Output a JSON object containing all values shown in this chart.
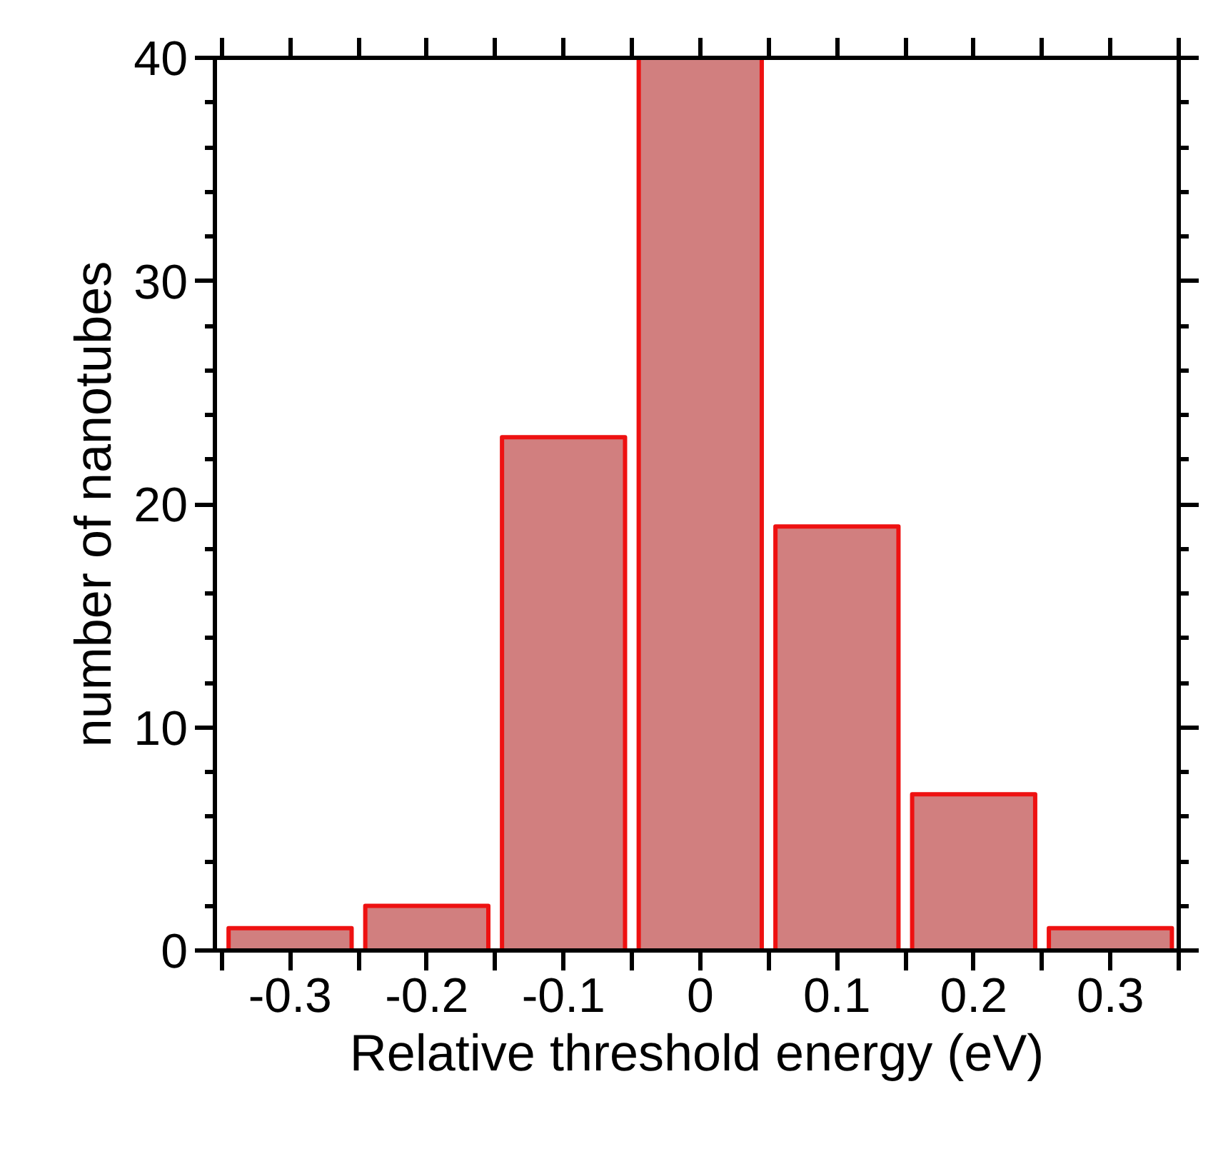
{
  "chart_data": {
    "type": "histogram",
    "xlabel": "Relative threshold energy (eV)",
    "ylabel": "number of nanotubes",
    "bins": [
      -0.35,
      -0.25,
      -0.15,
      -0.05,
      0.05,
      0.15,
      0.25,
      0.35
    ],
    "values": [
      1,
      2,
      23,
      40,
      19,
      7,
      1
    ],
    "color": "#d17f7f",
    "xlim": [
      -0.355,
      0.35
    ],
    "ylim": [
      0,
      40
    ],
    "xticks": [
      {
        "value": -0.35,
        "label": null
      },
      {
        "value": -0.3,
        "label": "-0.3"
      },
      {
        "value": -0.25,
        "label": null
      },
      {
        "value": -0.2,
        "label": "-0.2"
      },
      {
        "value": -0.15,
        "label": null
      },
      {
        "value": -0.1,
        "label": "-0.1"
      },
      {
        "value": -0.05,
        "label": null
      },
      {
        "value": 0,
        "label": "0"
      },
      {
        "value": 0.05,
        "label": null
      },
      {
        "value": 0.1,
        "label": "0.1"
      },
      {
        "value": 0.15,
        "label": null
      },
      {
        "value": 0.2,
        "label": "0.2"
      },
      {
        "value": 0.25,
        "label": null
      },
      {
        "value": 0.3,
        "label": "0.3"
      },
      {
        "value": 0.35,
        "label": null
      }
    ],
    "yticks": [
      0,
      10,
      20,
      30,
      40
    ],
    "grid": false
  }
}
